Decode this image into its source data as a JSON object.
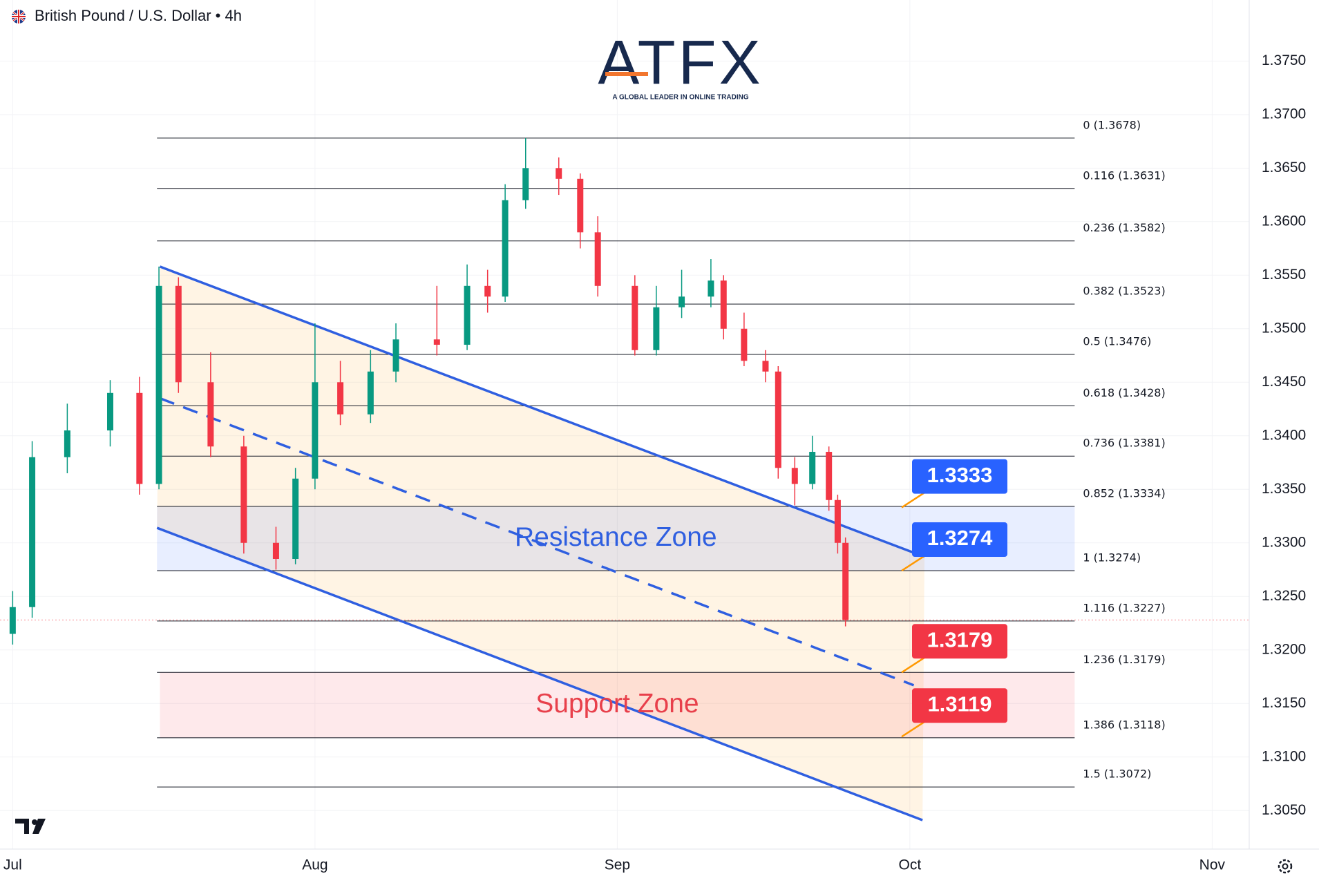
{
  "chart_data": {
    "type": "candlestick",
    "title": "British Pound / U.S. Dollar • 4h",
    "logo": "ATFX",
    "logo_tagline": "A GLOBAL LEADER IN ONLINE TRADING",
    "xlim": [
      -1.3,
      126.8
    ],
    "xticks": [
      {
        "value": 0,
        "label": "Jul"
      },
      {
        "value": 31,
        "label": "Aug"
      },
      {
        "value": 62,
        "label": "Sep"
      },
      {
        "value": 92,
        "label": "Oct"
      },
      {
        "value": 123,
        "label": "Nov"
      }
    ],
    "ylim": [
      1.3014,
      1.3807
    ],
    "yticks": [
      {
        "value": 1.305,
        "label": "1.3050"
      },
      {
        "value": 1.31,
        "label": "1.3100"
      },
      {
        "value": 1.315,
        "label": "1.3150"
      },
      {
        "value": 1.32,
        "label": "1.3200"
      },
      {
        "value": 1.325,
        "label": "1.3250"
      },
      {
        "value": 1.33,
        "label": "1.3300"
      },
      {
        "value": 1.335,
        "label": "1.3350"
      },
      {
        "value": 1.34,
        "label": "1.3400"
      },
      {
        "value": 1.345,
        "label": "1.3450"
      },
      {
        "value": 1.35,
        "label": "1.3500"
      },
      {
        "value": 1.355,
        "label": "1.3550"
      },
      {
        "value": 1.36,
        "label": "1.3600"
      },
      {
        "value": 1.365,
        "label": "1.3650"
      },
      {
        "value": 1.37,
        "label": "1.3700"
      },
      {
        "value": 1.375,
        "label": "1.3750"
      }
    ],
    "grid": true,
    "up_color": "#089981",
    "down_color": "#f23645",
    "candles": {
      "x": [
        0,
        2,
        5.6,
        10,
        13,
        15,
        17,
        20.3,
        23.7,
        27,
        29,
        31,
        33.6,
        36.7,
        39.3,
        43.5,
        46.6,
        48.7,
        50.5,
        52.6,
        56,
        58.2,
        60,
        63.8,
        66,
        68.6,
        71.6,
        72.9,
        75,
        77.2,
        78.5,
        80.2,
        82,
        83.7,
        84.6,
        85.4
      ],
      "open": [
        1.3215,
        1.324,
        1.338,
        1.3405,
        1.344,
        1.3355,
        1.354,
        1.345,
        1.339,
        1.33,
        1.3285,
        1.336,
        1.345,
        1.342,
        1.346,
        1.349,
        1.3485,
        1.354,
        1.353,
        1.362,
        1.365,
        1.364,
        1.359,
        1.354,
        1.348,
        1.352,
        1.353,
        1.3545,
        1.35,
        1.347,
        1.346,
        1.337,
        1.3355,
        1.3385,
        1.334,
        1.33
      ],
      "high": [
        1.3255,
        1.3395,
        1.343,
        1.3452,
        1.3455,
        1.3558,
        1.3548,
        1.3478,
        1.34,
        1.3315,
        1.337,
        1.3505,
        1.347,
        1.348,
        1.3505,
        1.354,
        1.356,
        1.3555,
        1.3635,
        1.3678,
        1.366,
        1.3645,
        1.3605,
        1.355,
        1.354,
        1.3555,
        1.3565,
        1.355,
        1.3515,
        1.348,
        1.3465,
        1.338,
        1.34,
        1.339,
        1.3345,
        1.3305
      ],
      "low": [
        1.3205,
        1.323,
        1.3365,
        1.339,
        1.3345,
        1.335,
        1.344,
        1.338,
        1.329,
        1.3275,
        1.328,
        1.335,
        1.341,
        1.3412,
        1.345,
        1.3475,
        1.348,
        1.3515,
        1.3525,
        1.3612,
        1.3625,
        1.3575,
        1.353,
        1.3475,
        1.3475,
        1.351,
        1.352,
        1.349,
        1.3465,
        1.345,
        1.336,
        1.3335,
        1.335,
        1.333,
        1.329,
        1.3222
      ],
      "close": [
        1.324,
        1.338,
        1.3405,
        1.344,
        1.3355,
        1.354,
        1.345,
        1.339,
        1.33,
        1.3285,
        1.336,
        1.345,
        1.342,
        1.346,
        1.349,
        1.3485,
        1.354,
        1.353,
        1.362,
        1.365,
        1.364,
        1.359,
        1.354,
        1.348,
        1.352,
        1.353,
        1.3545,
        1.35,
        1.347,
        1.346,
        1.337,
        1.3355,
        1.3385,
        1.334,
        1.33,
        1.3228
      ]
    },
    "fib_x": [
      14.8,
      108.9
    ],
    "fib_levels": [
      {
        "value": 1.3678,
        "label": "0 (1.3678)"
      },
      {
        "value": 1.3631,
        "label": "0.116 (1.3631)"
      },
      {
        "value": 1.3582,
        "label": "0.236 (1.3582)"
      },
      {
        "value": 1.3523,
        "label": "0.382 (1.3523)"
      },
      {
        "value": 1.3476,
        "label": "0.5 (1.3476)"
      },
      {
        "value": 1.3428,
        "label": "0.618 (1.3428)"
      },
      {
        "value": 1.3381,
        "label": "0.736 (1.3381)"
      },
      {
        "value": 1.3334,
        "label": "0.852 (1.3334)"
      },
      {
        "value": 1.3274,
        "label": "1 (1.3274)"
      },
      {
        "value": 1.3227,
        "label": "1.116 (1.3227)"
      },
      {
        "value": 1.3179,
        "label": "1.236 (1.3179)"
      },
      {
        "value": 1.3118,
        "label": "1.386 (1.3118)"
      },
      {
        "value": 1.3072,
        "label": "1.5 (1.3072)"
      }
    ],
    "channel": {
      "color": "#2f5fe0",
      "upper": [
        [
          15.1,
          1.3558
        ],
        [
          93.5,
          1.3287
        ]
      ],
      "middle": [
        [
          15.1,
          1.3435
        ],
        [
          92.4,
          1.3167
        ]
      ],
      "lower": [
        [
          14.8,
          1.3314
        ],
        [
          93.3,
          1.3041
        ]
      ]
    },
    "zones": [
      {
        "label": "Resistance Zone",
        "from": 1.3274,
        "to": 1.3334,
        "x": [
          14.8,
          108.9
        ],
        "color": "#2f5fe0",
        "fill": "rgba(41,98,255,0.11)"
      },
      {
        "label": "Support Zone",
        "from": 1.3118,
        "to": 1.3179,
        "x": [
          15.1,
          108.9
        ],
        "color": "#e8404b",
        "fill": "rgba(242,54,69,0.11)"
      }
    ],
    "price_labels": [
      {
        "value": 1.3333,
        "label": "1.3333",
        "color": "#2962ff"
      },
      {
        "value": 1.3274,
        "label": "1.3274",
        "color": "#2962ff"
      },
      {
        "value": 1.3179,
        "label": "1.3179",
        "color": "#f23645"
      },
      {
        "value": 1.3119,
        "label": "1.3119",
        "color": "#f23645"
      }
    ]
  }
}
